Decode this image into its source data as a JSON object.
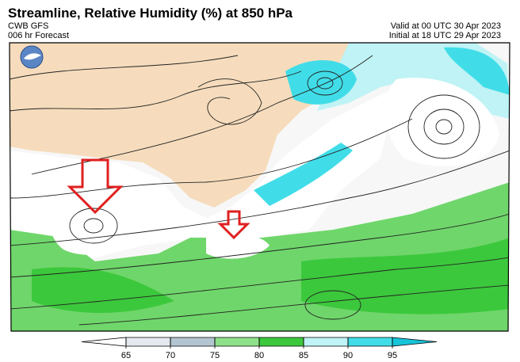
{
  "header": {
    "title": "Streamline, Relative Humidity (%) at 850 hPa",
    "model": "CWB GFS",
    "forecast": "006 hr Forecast",
    "valid": "Valid at 00 UTC 30 Apr 2023",
    "initial": "Initial at 18 UTC 29 Apr 2023"
  },
  "colorbar": {
    "ticks": [
      65,
      70,
      75,
      80,
      85,
      90,
      95
    ],
    "colors": [
      "#ffffff",
      "#e3e9ee",
      "#b3c5d1",
      "#8fe08a",
      "#3cc83c",
      "#bff3f5",
      "#40dde8",
      "#17c3d8"
    ]
  }
}
